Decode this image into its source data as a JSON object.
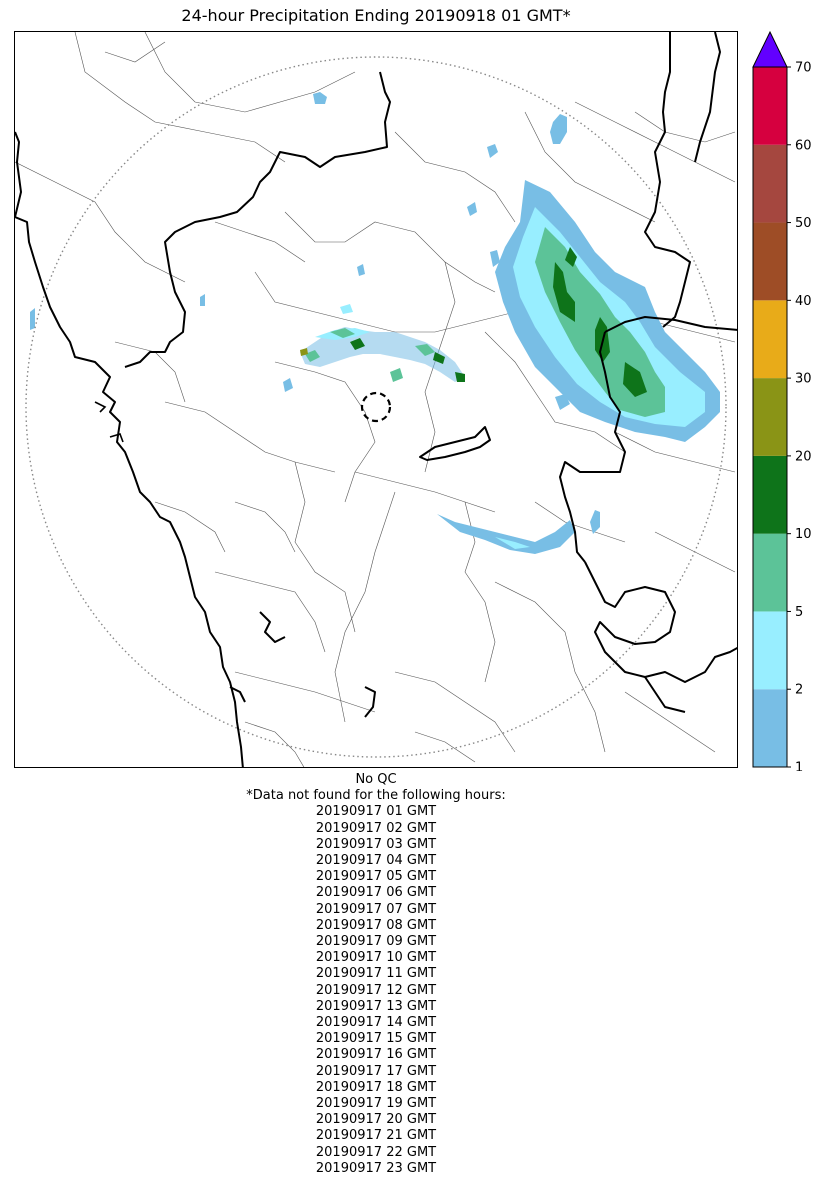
{
  "title": "24-hour Precipitation Ending 20190918 01 GMT*",
  "map": {
    "icons": [
      "radar-range-ring",
      "radar-site-marker",
      "state-borders",
      "district-borders",
      "coastline"
    ],
    "colors": {
      "coast_and_state_border": "#000000",
      "district_border": "#555555",
      "range_ring": "#888888"
    }
  },
  "colorbar": {
    "tick_labels": [
      "1",
      "2",
      "5",
      "10",
      "20",
      "30",
      "40",
      "50",
      "60",
      "70"
    ],
    "bins": [
      {
        "from": 1,
        "to": 2,
        "color": "#78BEE5"
      },
      {
        "from": 2,
        "to": 5,
        "color": "#98EEFF"
      },
      {
        "from": 5,
        "to": 10,
        "color": "#5CC398"
      },
      {
        "from": 10,
        "to": 20,
        "color": "#0E741A"
      },
      {
        "from": 20,
        "to": 30,
        "color": "#8A9416"
      },
      {
        "from": 30,
        "to": 40,
        "color": "#E8AB19"
      },
      {
        "from": 40,
        "to": 50,
        "color": "#9E4D26"
      },
      {
        "from": 50,
        "to": 60,
        "color": "#A5473F"
      },
      {
        "from": 60,
        "to": 70,
        "color": "#D6003F"
      }
    ],
    "extend_color": "#6200FF"
  },
  "footer": {
    "qc_note": "No QC",
    "missing_header": "*Data not found for the following hours:",
    "missing_hours": [
      "20190917 01 GMT",
      "20190917 02 GMT",
      "20190917 03 GMT",
      "20190917 04 GMT",
      "20190917 05 GMT",
      "20190917 06 GMT",
      "20190917 07 GMT",
      "20190917 08 GMT",
      "20190917 09 GMT",
      "20190917 10 GMT",
      "20190917 11 GMT",
      "20190917 12 GMT",
      "20190917 13 GMT",
      "20190917 14 GMT",
      "20190917 15 GMT",
      "20190917 16 GMT",
      "20190917 17 GMT",
      "20190917 18 GMT",
      "20190917 19 GMT",
      "20190917 20 GMT",
      "20190917 21 GMT",
      "20190917 22 GMT",
      "20190917 23 GMT"
    ]
  }
}
